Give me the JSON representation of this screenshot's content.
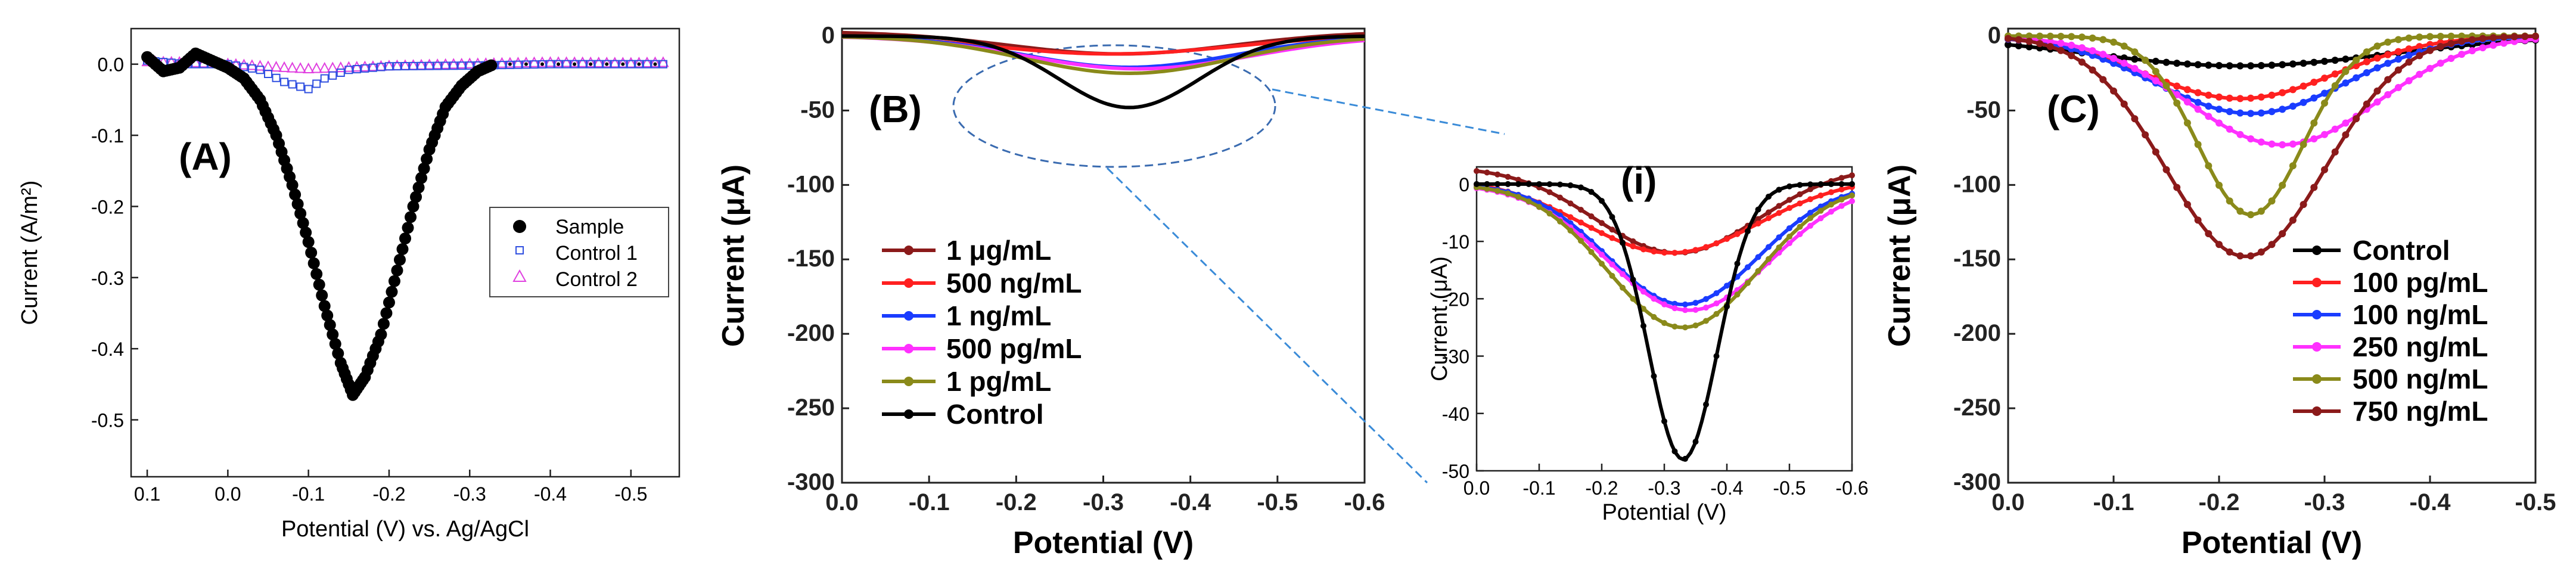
{
  "figure": "Cyclic voltammetry style current vs potential panels",
  "chart_data": [
    {
      "id": "A",
      "type": "line",
      "panel_label": "(A)",
      "xlabel": "Potential (V) vs. Ag/AgCl",
      "ylabel": "Current (A/m²)",
      "xlim": [
        0.12,
        -0.56
      ],
      "ylim": [
        -0.58,
        0.05
      ],
      "xticks": [
        0.1,
        0.0,
        -0.1,
        -0.2,
        -0.3,
        -0.4,
        -0.5
      ],
      "xtick_labels": [
        "0.1",
        "0.0",
        "-0.1",
        "-0.2",
        "-0.3",
        "-0.4",
        "-0.5"
      ],
      "yticks": [
        0.0,
        -0.1,
        -0.2,
        -0.3,
        -0.4,
        -0.5
      ],
      "ytick_labels": [
        "0.0",
        "-0.1",
        "-0.2",
        "-0.3",
        "-0.4",
        "-0.5"
      ],
      "legend": "center-right",
      "series": [
        {
          "name": "Sample",
          "marker": "circle",
          "color": "#000000",
          "x": [
            0.1,
            0.08,
            0.06,
            0.04,
            0.02,
            0.0,
            -0.02,
            -0.04,
            -0.06,
            -0.08,
            -0.1,
            -0.12,
            -0.14,
            -0.155,
            -0.17,
            -0.19,
            -0.21,
            -0.23,
            -0.25,
            -0.27,
            -0.29,
            -0.31,
            -0.33
          ],
          "y": [
            0.01,
            -0.01,
            -0.005,
            0.015,
            0.005,
            -0.005,
            -0.02,
            -0.05,
            -0.1,
            -0.17,
            -0.25,
            -0.34,
            -0.42,
            -0.465,
            -0.44,
            -0.38,
            -0.29,
            -0.2,
            -0.12,
            -0.06,
            -0.03,
            -0.01,
            0.0
          ]
        },
        {
          "name": "Control 1",
          "marker": "square",
          "color": "#3050e0",
          "x": [
            0.1,
            0.05,
            0.0,
            -0.04,
            -0.07,
            -0.1,
            -0.12,
            -0.15,
            -0.2,
            -0.3,
            -0.4,
            -0.5,
            -0.55
          ],
          "y": [
            0.005,
            0.0,
            0.0,
            -0.008,
            -0.025,
            -0.035,
            -0.02,
            -0.008,
            -0.003,
            -0.002,
            0.0,
            0.0,
            0.0
          ]
        },
        {
          "name": "Control 2",
          "marker": "triangle",
          "color": "#e040e0",
          "x": [
            0.1,
            0.05,
            0.0,
            -0.05,
            -0.1,
            -0.15,
            -0.2,
            -0.3,
            -0.4,
            -0.5,
            -0.55
          ],
          "y": [
            0.003,
            0.002,
            0.0,
            -0.004,
            -0.007,
            -0.005,
            -0.003,
            0.0,
            0.002,
            0.001,
            0.002
          ]
        }
      ]
    },
    {
      "id": "B",
      "type": "line",
      "panel_label": "(B)",
      "xlabel": "Potential (V)",
      "ylabel": "Current (μA)",
      "xlim": [
        0.0,
        -0.6
      ],
      "ylim": [
        -300,
        5
      ],
      "xticks": [
        0.0,
        -0.1,
        -0.2,
        -0.3,
        -0.4,
        -0.5,
        -0.6
      ],
      "xtick_labels": [
        "0.0",
        "-0.1",
        "-0.2",
        "-0.3",
        "-0.4",
        "-0.5",
        "-0.6"
      ],
      "yticks": [
        0,
        -50,
        -100,
        -150,
        -200,
        -250,
        -300
      ],
      "ytick_labels": [
        "0",
        "-50",
        "-100",
        "-150",
        "-200",
        "-250",
        "-300"
      ],
      "legend": "lower-left",
      "series": [
        {
          "name": "1 μg/mL",
          "color": "#8b1a1a",
          "center": -0.32,
          "depth": -15,
          "width": 0.13,
          "offset": 3
        },
        {
          "name": "500 ng/mL",
          "color": "#ff2020",
          "center": -0.31,
          "depth": -13,
          "width": 0.14,
          "offset": 1
        },
        {
          "name": "1 ng/mL",
          "color": "#1a3cff",
          "center": -0.33,
          "depth": -21,
          "width": 0.12,
          "offset": 0
        },
        {
          "name": "500 pg/mL",
          "color": "#ff30ff",
          "center": -0.34,
          "depth": -22,
          "width": 0.13,
          "offset": 0
        },
        {
          "name": "1 pg/mL",
          "color": "#8a8a1a",
          "center": -0.33,
          "depth": -25,
          "width": 0.12,
          "offset": 0
        },
        {
          "name": "Control",
          "color": "#000000",
          "center": -0.33,
          "depth": -48,
          "width": 0.08,
          "offset": 0
        }
      ]
    },
    {
      "id": "B-inset",
      "type": "line",
      "panel_label": "(i)",
      "xlabel": "Potential (V)",
      "ylabel": "Current (μA)",
      "xlim": [
        0.0,
        -0.6
      ],
      "ylim": [
        -50,
        3
      ],
      "xticks": [
        0.0,
        -0.1,
        -0.2,
        -0.3,
        -0.4,
        -0.5,
        -0.6
      ],
      "xtick_labels": [
        "0.0",
        "-0.1",
        "-0.2",
        "-0.3",
        "-0.4",
        "-0.5",
        "-0.6"
      ],
      "yticks": [
        0,
        -10,
        -20,
        -30,
        -40,
        -50
      ],
      "ytick_labels": [
        "0",
        "-10",
        "-20",
        "-30",
        "-40",
        "-50"
      ]
    },
    {
      "id": "C",
      "type": "line",
      "panel_label": "(C)",
      "xlabel": "Potential (V)",
      "ylabel": "Current (μA)",
      "xlim": [
        0.0,
        -0.5
      ],
      "ylim": [
        -300,
        5
      ],
      "xticks": [
        0.0,
        -0.1,
        -0.2,
        -0.3,
        -0.4,
        -0.5
      ],
      "xtick_labels": [
        "0.0",
        "-0.1",
        "-0.2",
        "-0.3",
        "-0.4",
        "-0.5"
      ],
      "yticks": [
        0,
        -50,
        -100,
        -150,
        -200,
        -250,
        -300
      ],
      "ytick_labels": [
        "0",
        "-50",
        "-100",
        "-150",
        "-200",
        "-250",
        "-300"
      ],
      "legend": "lower-right",
      "series": [
        {
          "name": "Control",
          "color": "#000000",
          "center": -0.22,
          "depth": -20,
          "width": 0.14,
          "offset": 0
        },
        {
          "name": "100 pg/mL",
          "color": "#ff2020",
          "center": -0.22,
          "depth": -42,
          "width": 0.09,
          "offset": 0
        },
        {
          "name": "100 ng/mL",
          "color": "#1a3cff",
          "center": -0.23,
          "depth": -52,
          "width": 0.09,
          "offset": 0
        },
        {
          "name": "250 ng/mL",
          "color": "#ff30ff",
          "center": -0.26,
          "depth": -73,
          "width": 0.09,
          "offset": 0
        },
        {
          "name": "500 ng/mL",
          "color": "#8a8a1a",
          "center": -0.23,
          "depth": -120,
          "width": 0.05,
          "offset": 0
        },
        {
          "name": "750 ng/mL",
          "color": "#8b1a1a",
          "center": -0.225,
          "depth": -148,
          "width": 0.075,
          "offset": 0
        }
      ]
    }
  ]
}
